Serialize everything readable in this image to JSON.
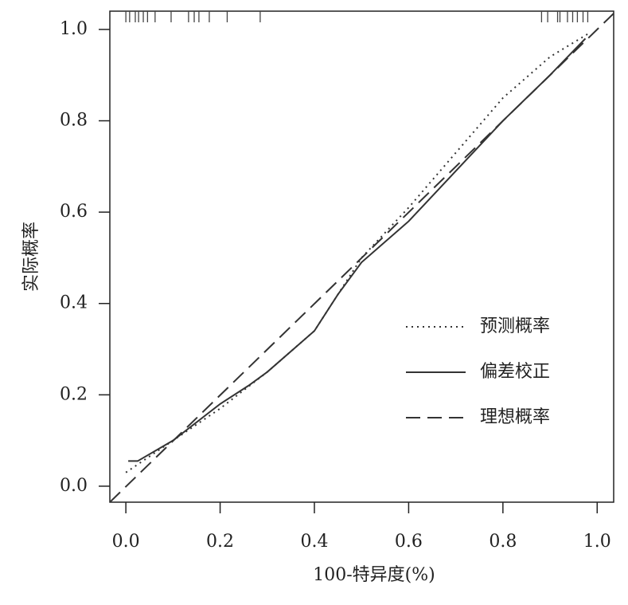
{
  "chart_data": {
    "type": "line",
    "xlabel": "100-特异度(%)",
    "ylabel": "实际概率",
    "xlim": [
      -0.034,
      1.035
    ],
    "ylim": [
      -0.035,
      1.04
    ],
    "xticks": [
      {
        "value": 0,
        "label": "0.0"
      },
      0.2,
      0.4,
      0.6,
      0.8,
      {
        "value": 1,
        "label": "1.0"
      }
    ],
    "yticks": [
      {
        "value": 0,
        "label": "0.0"
      },
      0.2,
      0.4,
      0.6,
      0.8,
      {
        "value": 1,
        "label": "1.0"
      }
    ],
    "series": [
      {
        "name": "预测概率",
        "color": "#333333",
        "dash": "dotted",
        "x": [
          0.0,
          0.1,
          0.2,
          0.3,
          0.4,
          0.45,
          0.5,
          0.6,
          0.7,
          0.8,
          0.9,
          0.98
        ],
        "values": [
          0.03,
          0.1,
          0.17,
          0.25,
          0.34,
          0.42,
          0.5,
          0.61,
          0.73,
          0.85,
          0.94,
          0.99
        ]
      },
      {
        "name": "偏差校正",
        "color": "#333333",
        "dash": "solid",
        "x": [
          0.005,
          0.025,
          0.1,
          0.2,
          0.26,
          0.3,
          0.4,
          0.45,
          0.5,
          0.6,
          0.7,
          0.8,
          0.9,
          0.975
        ],
        "values": [
          0.055,
          0.055,
          0.1,
          0.18,
          0.22,
          0.25,
          0.34,
          0.42,
          0.49,
          0.58,
          0.69,
          0.8,
          0.9,
          0.98
        ]
      },
      {
        "name": "理想概率",
        "color": "#333333",
        "dash": "dashed",
        "x": [
          -0.034,
          1.035
        ],
        "values": [
          -0.035,
          1.035
        ]
      }
    ],
    "rug": [
      0.0,
      0.008,
      0.02,
      0.027,
      0.037,
      0.046,
      0.062,
      0.096,
      0.133,
      0.145,
      0.155,
      0.177,
      0.215,
      0.285,
      0.882,
      0.895,
      0.916,
      0.921,
      0.937,
      0.948,
      0.958,
      0.97,
      0.98
    ]
  }
}
